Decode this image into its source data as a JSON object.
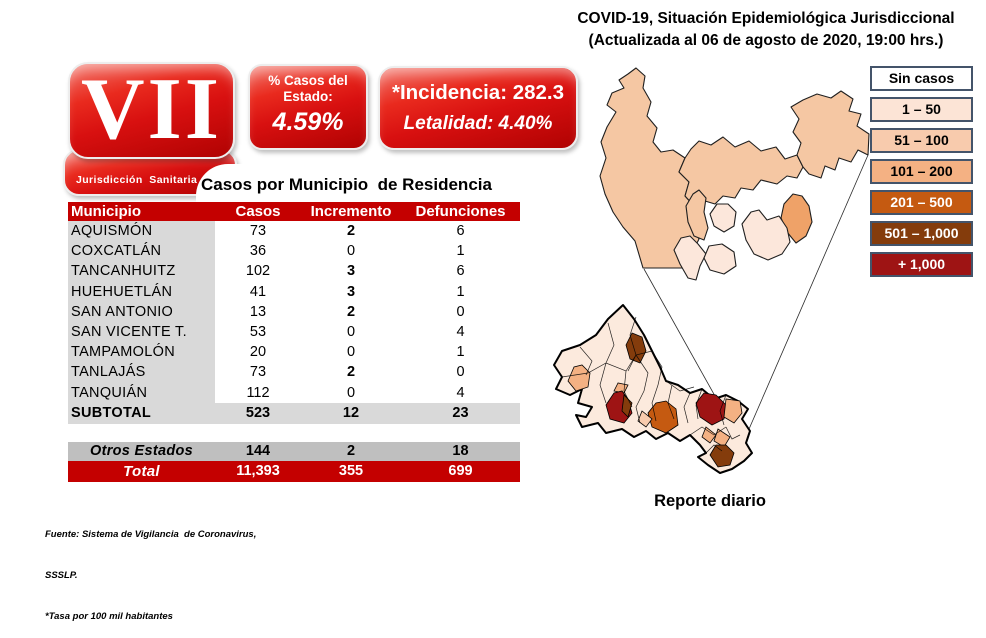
{
  "header": {
    "line1": "COVID-19, Situación Epidemiológica Jurisdiccional",
    "line2": "(Actualizada al 06 de agosto de 2020, 19:00 hrs.)"
  },
  "badges": {
    "jurisdiccion": {
      "numeral": "VII",
      "label": "Jurisdicción  Sanitaria"
    },
    "pct": {
      "label_line1": "% Casos del",
      "label_line2": "Estado:",
      "value": "4.59%"
    },
    "inc": {
      "incidencia": "*Incidencia: 282.3",
      "letalidad": "Letalidad: 4.40%"
    }
  },
  "table": {
    "title": "Casos por Municipio  de Residencia",
    "columns": [
      "Municipio",
      "Casos",
      "Incremento",
      "Defunciones"
    ],
    "rows": [
      {
        "name": "AQUISMÓN",
        "casos": "73",
        "incremento": "2",
        "defunciones": "6"
      },
      {
        "name": "COXCATLÁN",
        "casos": "36",
        "incremento": "0",
        "defunciones": "1"
      },
      {
        "name": "TANCANHUITZ",
        "casos": "102",
        "incremento": "3",
        "defunciones": "6"
      },
      {
        "name": "HUEHUETLÁN",
        "casos": "41",
        "incremento": "3",
        "defunciones": "1"
      },
      {
        "name": "SAN ANTONIO",
        "casos": "13",
        "incremento": "2",
        "defunciones": "0"
      },
      {
        "name": "SAN VICENTE T.",
        "casos": "53",
        "incremento": "0",
        "defunciones": "4"
      },
      {
        "name": "TAMPAMOLÓN",
        "casos": "20",
        "incremento": "0",
        "defunciones": "1"
      },
      {
        "name": "TANLAJÁS",
        "casos": "73",
        "incremento": "2",
        "defunciones": "0"
      },
      {
        "name": "TANQUIÁN",
        "casos": "112",
        "incremento": "0",
        "defunciones": "4"
      }
    ],
    "subtotal": {
      "name": "SUBTOTAL",
      "casos": "523",
      "incremento": "12",
      "defunciones": "23"
    },
    "otros": {
      "name": "Otros Estados",
      "casos": "144",
      "incremento": "2",
      "defunciones": "18"
    },
    "total": {
      "name": "Total",
      "casos": "11,393",
      "incremento": "355",
      "defunciones": "699"
    }
  },
  "legend": {
    "items": [
      {
        "label": "Sin casos",
        "color": "#ffffff",
        "text": "#000000"
      },
      {
        "label": "1 – 50",
        "color": "#fce4d6",
        "text": "#000000"
      },
      {
        "label": "51 – 100",
        "color": "#f8cbad",
        "text": "#000000"
      },
      {
        "label": "101 – 200",
        "color": "#f4b183",
        "text": "#000000"
      },
      {
        "label": "201 – 500",
        "color": "#c55a11",
        "text": "#ffffff"
      },
      {
        "label": "501 – 1,000",
        "color": "#843c0c",
        "text": "#ffffff"
      },
      {
        "label": "+ 1,000",
        "color": "#9e1414",
        "text": "#ffffff"
      }
    ]
  },
  "maps": {
    "caption": "Reporte diario"
  },
  "footer": {
    "line1": "Fuente: Sistema de Vigilancia  de Coronavirus,",
    "line2": "SSSLP.",
    "line3": "*Tasa por 100 mil habitantes"
  },
  "colors": {
    "accent_red": "#c40000",
    "row_gray": "#d9d9d9",
    "otros_gray": "#bfbfbf",
    "legend_border": "#44546a"
  }
}
